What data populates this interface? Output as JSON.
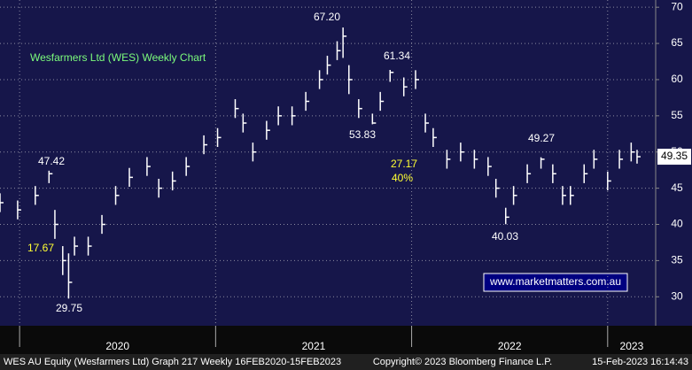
{
  "chart_data": {
    "type": "hlc",
    "title": "Wesfarmers Ltd (WES) Weekly Chart",
    "watermark": "www.marketmatters.com.au",
    "color": "#ffffff",
    "x": [
      2019.9,
      2019.99,
      2020.08,
      2020.15,
      2020.18,
      2020.22,
      2020.25,
      2020.28,
      2020.35,
      2020.42,
      2020.49,
      2020.56,
      2020.65,
      2020.71,
      2020.78,
      2020.85,
      2020.94,
      2021.01,
      2021.1,
      2021.14,
      2021.19,
      2021.26,
      2021.32,
      2021.39,
      2021.46,
      2021.53,
      2021.57,
      2021.62,
      2021.65,
      2021.68,
      2021.73,
      2021.8,
      2021.84,
      2021.89,
      2021.96,
      2022.02,
      2022.07,
      2022.11,
      2022.18,
      2022.25,
      2022.32,
      2022.39,
      2022.43,
      2022.48,
      2022.52,
      2022.59,
      2022.66,
      2022.72,
      2022.77,
      2022.81,
      2022.88,
      2022.93,
      2023.0,
      2023.06,
      2023.12,
      2023.15
    ],
    "high": [
      44.3,
      43.3,
      45.3,
      47.42,
      42,
      37,
      36,
      38.3,
      38.3,
      41.3,
      45.3,
      47.8,
      49.3,
      46.3,
      47.3,
      49.3,
      52.3,
      53.3,
      57.3,
      55.3,
      51.3,
      54.3,
      56.3,
      56.3,
      58.3,
      61.3,
      63.3,
      65.3,
      67.2,
      62,
      57.3,
      55.3,
      58.3,
      61.34,
      60.3,
      61.3,
      55.3,
      53.3,
      50.3,
      51.3,
      50.3,
      49.3,
      46.3,
      42.3,
      45.3,
      48.3,
      49.27,
      48.3,
      45.3,
      45.3,
      48.3,
      50.3,
      47.3,
      50.3,
      51.3,
      50.3
    ],
    "low": [
      41.7,
      40.7,
      42.7,
      45.7,
      38,
      33,
      29.75,
      35.7,
      35.7,
      38.7,
      42.7,
      45.2,
      46.7,
      43.7,
      44.7,
      46.7,
      49.7,
      50.7,
      54.7,
      52.7,
      48.7,
      51.7,
      53.7,
      53.7,
      55.7,
      58.7,
      60.7,
      62.7,
      63,
      58,
      54.7,
      53.83,
      55.7,
      59.7,
      57.7,
      58.7,
      52.7,
      50.7,
      47.7,
      48.7,
      47.7,
      46.7,
      43.7,
      40.03,
      42.7,
      45.7,
      47.7,
      45.7,
      42.7,
      42.7,
      45.7,
      47.7,
      44.7,
      47.7,
      48.7,
      48.4
    ],
    "close": [
      43,
      42,
      44,
      47,
      40,
      35,
      32,
      37,
      37,
      40,
      44,
      46.5,
      48,
      45,
      46,
      48,
      51,
      52,
      56,
      54,
      50,
      53,
      55,
      55,
      57,
      60,
      62,
      64,
      66,
      60,
      56,
      54,
      57,
      61,
      59,
      60,
      54,
      52,
      49,
      50,
      49,
      48,
      45,
      41,
      44,
      47,
      49,
      47,
      44,
      44,
      47,
      49,
      46,
      49,
      50,
      49.35
    ],
    "last_price": 49.35,
    "xlim": [
      2019.9,
      2023.245
    ],
    "xticks": [
      2020,
      2021,
      2022,
      2023
    ],
    "ylim": [
      26,
      71
    ],
    "yticks": [
      30,
      35,
      40,
      45,
      50,
      55,
      60,
      65,
      70
    ],
    "grid": true,
    "annotations": [
      {
        "text": "67.20",
        "color": "#ffffff"
      },
      {
        "text": "61.34",
        "color": "#ffffff"
      },
      {
        "text": "53.83",
        "color": "#ffffff"
      },
      {
        "text": "47.42",
        "color": "#ffffff"
      },
      {
        "text": "29.75",
        "color": "#ffffff"
      },
      {
        "text": "40.03",
        "color": "#ffffff"
      },
      {
        "text": "49.27",
        "color": "#ffffff"
      },
      {
        "text": "17.67",
        "color": "#ffff33"
      },
      {
        "text": "27.17",
        "color": "#ffff33"
      },
      {
        "text": "40%",
        "color": "#ffff33"
      }
    ],
    "footer": [
      "WES AU Equity (Wesfarmers Ltd) Graph 217  Weekly 16FEB2020-15FEB2023",
      "Copyright© 2023 Bloomberg Finance L.P.",
      "15-Feb-2023 16:14:43"
    ]
  }
}
